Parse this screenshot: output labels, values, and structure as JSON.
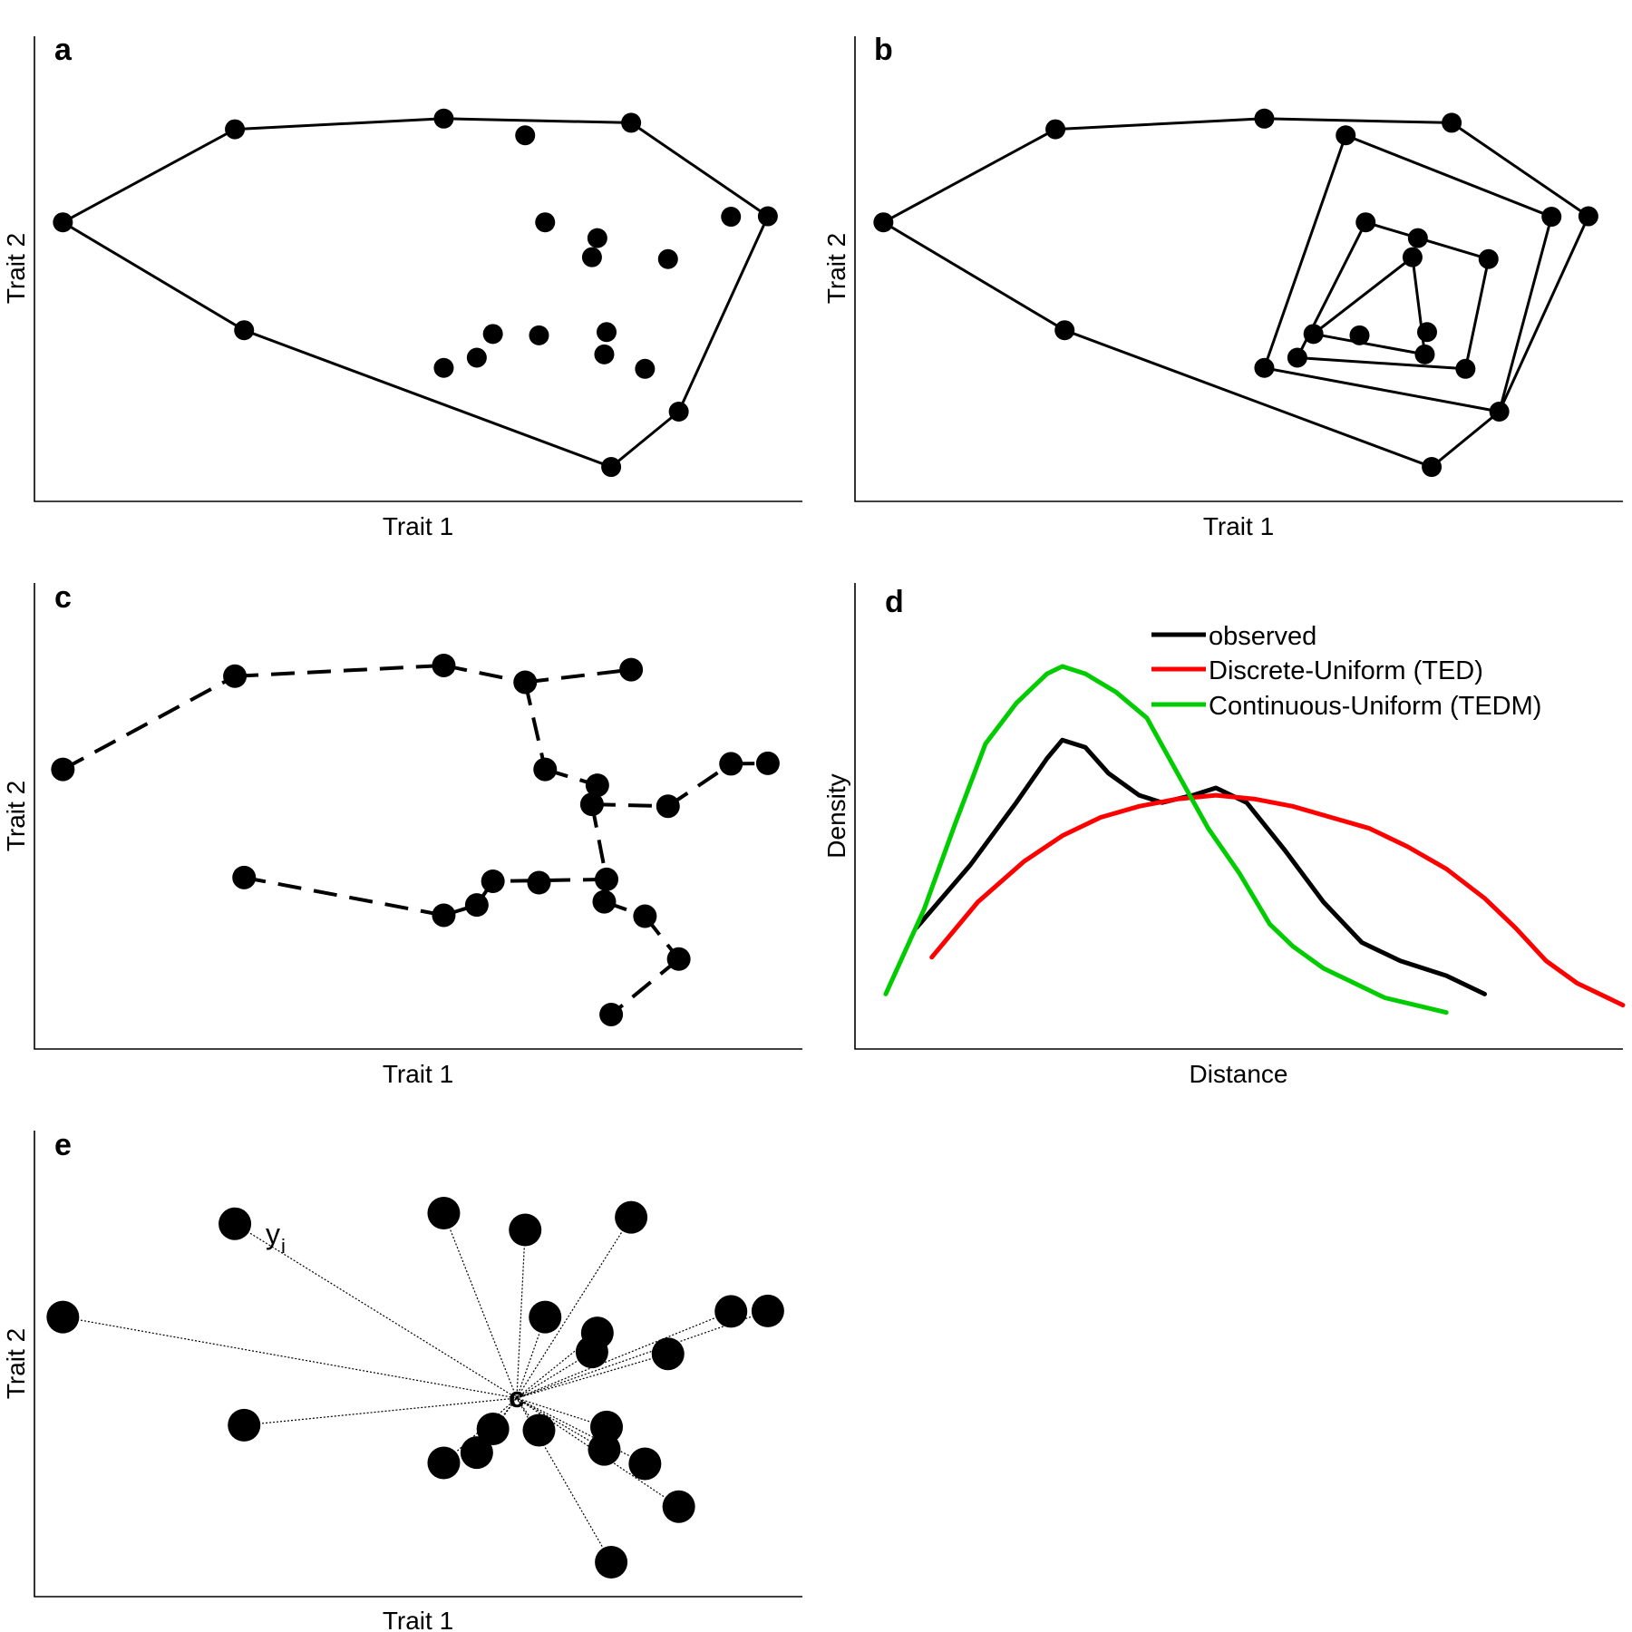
{
  "colors": {
    "observed": "#000000",
    "discrete": "#ff0000",
    "continuous": "#00cc00",
    "points": "#000000"
  },
  "panels": {
    "a": {
      "letter": "a",
      "xlabel": "Trait 1",
      "ylabel": "Trait 2"
    },
    "b": {
      "letter": "b",
      "xlabel": "Trait 1",
      "ylabel": "Trait 2"
    },
    "c": {
      "letter": "c",
      "xlabel": "Trait 1",
      "ylabel": "Trait 2"
    },
    "d": {
      "letter": "d",
      "xlabel": "Distance",
      "ylabel": "Density"
    },
    "e": {
      "letter": "e",
      "xlabel": "Trait 1",
      "ylabel": "Trait 2",
      "centroid_label": "c",
      "distance_label": "y",
      "distance_subscript": "i"
    }
  },
  "legend_d": [
    {
      "label": "observed",
      "color": "#000000"
    },
    {
      "label": "Discrete-Uniform (TED)",
      "color": "#ff0000"
    },
    {
      "label": "Continuous-Uniform (TEDM)",
      "color": "#00cc00"
    }
  ],
  "trait_points": [
    [
      0.037,
      0.6
    ],
    [
      0.261,
      0.8
    ],
    [
      0.533,
      0.823
    ],
    [
      0.777,
      0.814
    ],
    [
      0.955,
      0.613
    ],
    [
      0.907,
      0.612
    ],
    [
      0.639,
      0.787
    ],
    [
      0.665,
      0.6
    ],
    [
      0.733,
      0.566
    ],
    [
      0.726,
      0.525
    ],
    [
      0.825,
      0.521
    ],
    [
      0.657,
      0.357
    ],
    [
      0.597,
      0.36
    ],
    [
      0.576,
      0.309
    ],
    [
      0.533,
      0.287
    ],
    [
      0.745,
      0.364
    ],
    [
      0.742,
      0.316
    ],
    [
      0.795,
      0.285
    ],
    [
      0.839,
      0.193
    ],
    [
      0.273,
      0.368
    ],
    [
      0.751,
      0.074
    ]
  ],
  "hull_a": [
    0,
    1,
    2,
    3,
    4,
    18,
    20,
    19
  ],
  "nested_hulls_b": [
    [
      0,
      1,
      2,
      3,
      4,
      18,
      20,
      19
    ],
    [
      6,
      5,
      18,
      14
    ],
    [
      7,
      10,
      17,
      13
    ],
    [
      9,
      16,
      12
    ]
  ],
  "mst_c_edges": [
    [
      0,
      1
    ],
    [
      1,
      2
    ],
    [
      2,
      6
    ],
    [
      6,
      3
    ],
    [
      6,
      7
    ],
    [
      7,
      8
    ],
    [
      8,
      9
    ],
    [
      9,
      10
    ],
    [
      10,
      5
    ],
    [
      5,
      4
    ],
    [
      9,
      15
    ],
    [
      15,
      12
    ],
    [
      12,
      13
    ],
    [
      13,
      14
    ],
    [
      14,
      19
    ],
    [
      15,
      16
    ],
    [
      16,
      17
    ],
    [
      17,
      18
    ],
    [
      18,
      20
    ]
  ],
  "centroid_e": [
    0.628,
    0.426
  ],
  "chart_data": {
    "type": "line",
    "xlabel": "Distance",
    "ylabel": "Density",
    "series": [
      {
        "name": "observed",
        "x": [
          0.08,
          0.15,
          0.21,
          0.25,
          0.27,
          0.3,
          0.33,
          0.37,
          0.4,
          0.44,
          0.47,
          0.51,
          0.56,
          0.61,
          0.66,
          0.71,
          0.77,
          0.82
        ],
        "y": [
          0.28,
          0.45,
          0.62,
          0.74,
          0.79,
          0.77,
          0.7,
          0.64,
          0.62,
          0.64,
          0.66,
          0.62,
          0.49,
          0.35,
          0.24,
          0.19,
          0.15,
          0.1
        ]
      },
      {
        "name": "Discrete-Uniform (TED)",
        "x": [
          0.1,
          0.16,
          0.22,
          0.27,
          0.32,
          0.37,
          0.42,
          0.47,
          0.52,
          0.57,
          0.62,
          0.67,
          0.72,
          0.77,
          0.82,
          0.86,
          0.9,
          0.94,
          1.0
        ],
        "y": [
          0.2,
          0.35,
          0.46,
          0.53,
          0.58,
          0.61,
          0.63,
          0.64,
          0.63,
          0.61,
          0.58,
          0.55,
          0.5,
          0.44,
          0.36,
          0.28,
          0.19,
          0.13,
          0.07
        ]
      },
      {
        "name": "Continuous-Uniform (TEDM)",
        "x": [
          0.04,
          0.09,
          0.13,
          0.17,
          0.21,
          0.25,
          0.27,
          0.3,
          0.34,
          0.38,
          0.42,
          0.46,
          0.5,
          0.54,
          0.57,
          0.61,
          0.65,
          0.69,
          0.73,
          0.77
        ],
        "y": [
          0.1,
          0.33,
          0.56,
          0.78,
          0.89,
          0.97,
          0.99,
          0.97,
          0.92,
          0.85,
          0.7,
          0.55,
          0.43,
          0.29,
          0.23,
          0.17,
          0.13,
          0.09,
          0.07,
          0.05
        ]
      }
    ]
  }
}
